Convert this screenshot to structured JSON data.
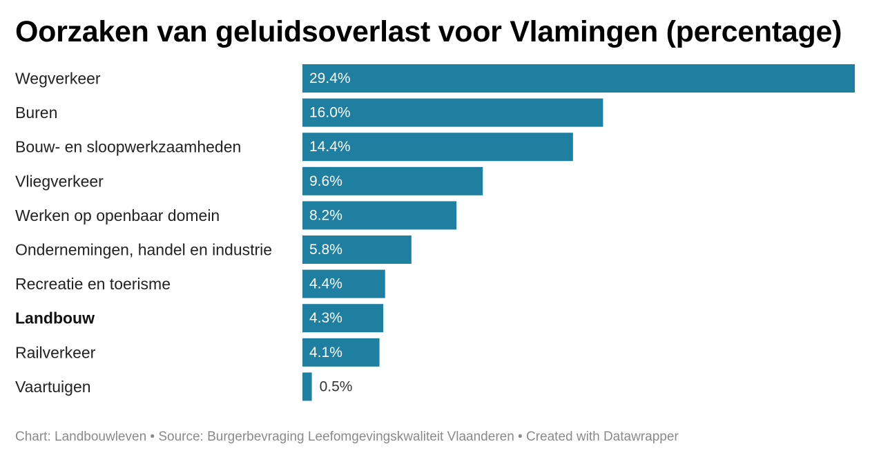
{
  "title": "Oorzaken van geluidsoverlast voor Vlamingen (percentage)",
  "footer": {
    "chart_credit": "Chart: Landbouwleven",
    "separator": " • ",
    "source": "Source: Burgerbevraging Leefomgevingskwaliteit Vlaanderen",
    "created_with": "Created with Datawrapper"
  },
  "colors": {
    "bar": "#1f7fa0",
    "label_inside": "#ffffff",
    "label_outside": "#333333"
  },
  "chart_data": {
    "type": "bar",
    "orientation": "horizontal",
    "title": "Oorzaken van geluidsoverlast voor Vlamingen (percentage)",
    "categories": [
      "Wegverkeer",
      "Buren",
      "Bouw- en sloopwerkzaamheden",
      "Vliegverkeer",
      "Werken op openbaar domein",
      "Ondernemingen, handel en industrie",
      "Recreatie en toerisme",
      "Landbouw",
      "Railverkeer",
      "Vaartuigen"
    ],
    "values": [
      29.4,
      16.0,
      14.4,
      9.6,
      8.2,
      5.8,
      4.4,
      4.3,
      4.1,
      0.5
    ],
    "value_labels": [
      "29.4%",
      "16.0%",
      "14.4%",
      "9.6%",
      "8.2%",
      "5.8%",
      "4.4%",
      "4.3%",
      "4.1%",
      "0.5%"
    ],
    "highlighted": [
      "Landbouw"
    ],
    "xlim": [
      0,
      29.4
    ],
    "grid": false,
    "legend": "none"
  }
}
